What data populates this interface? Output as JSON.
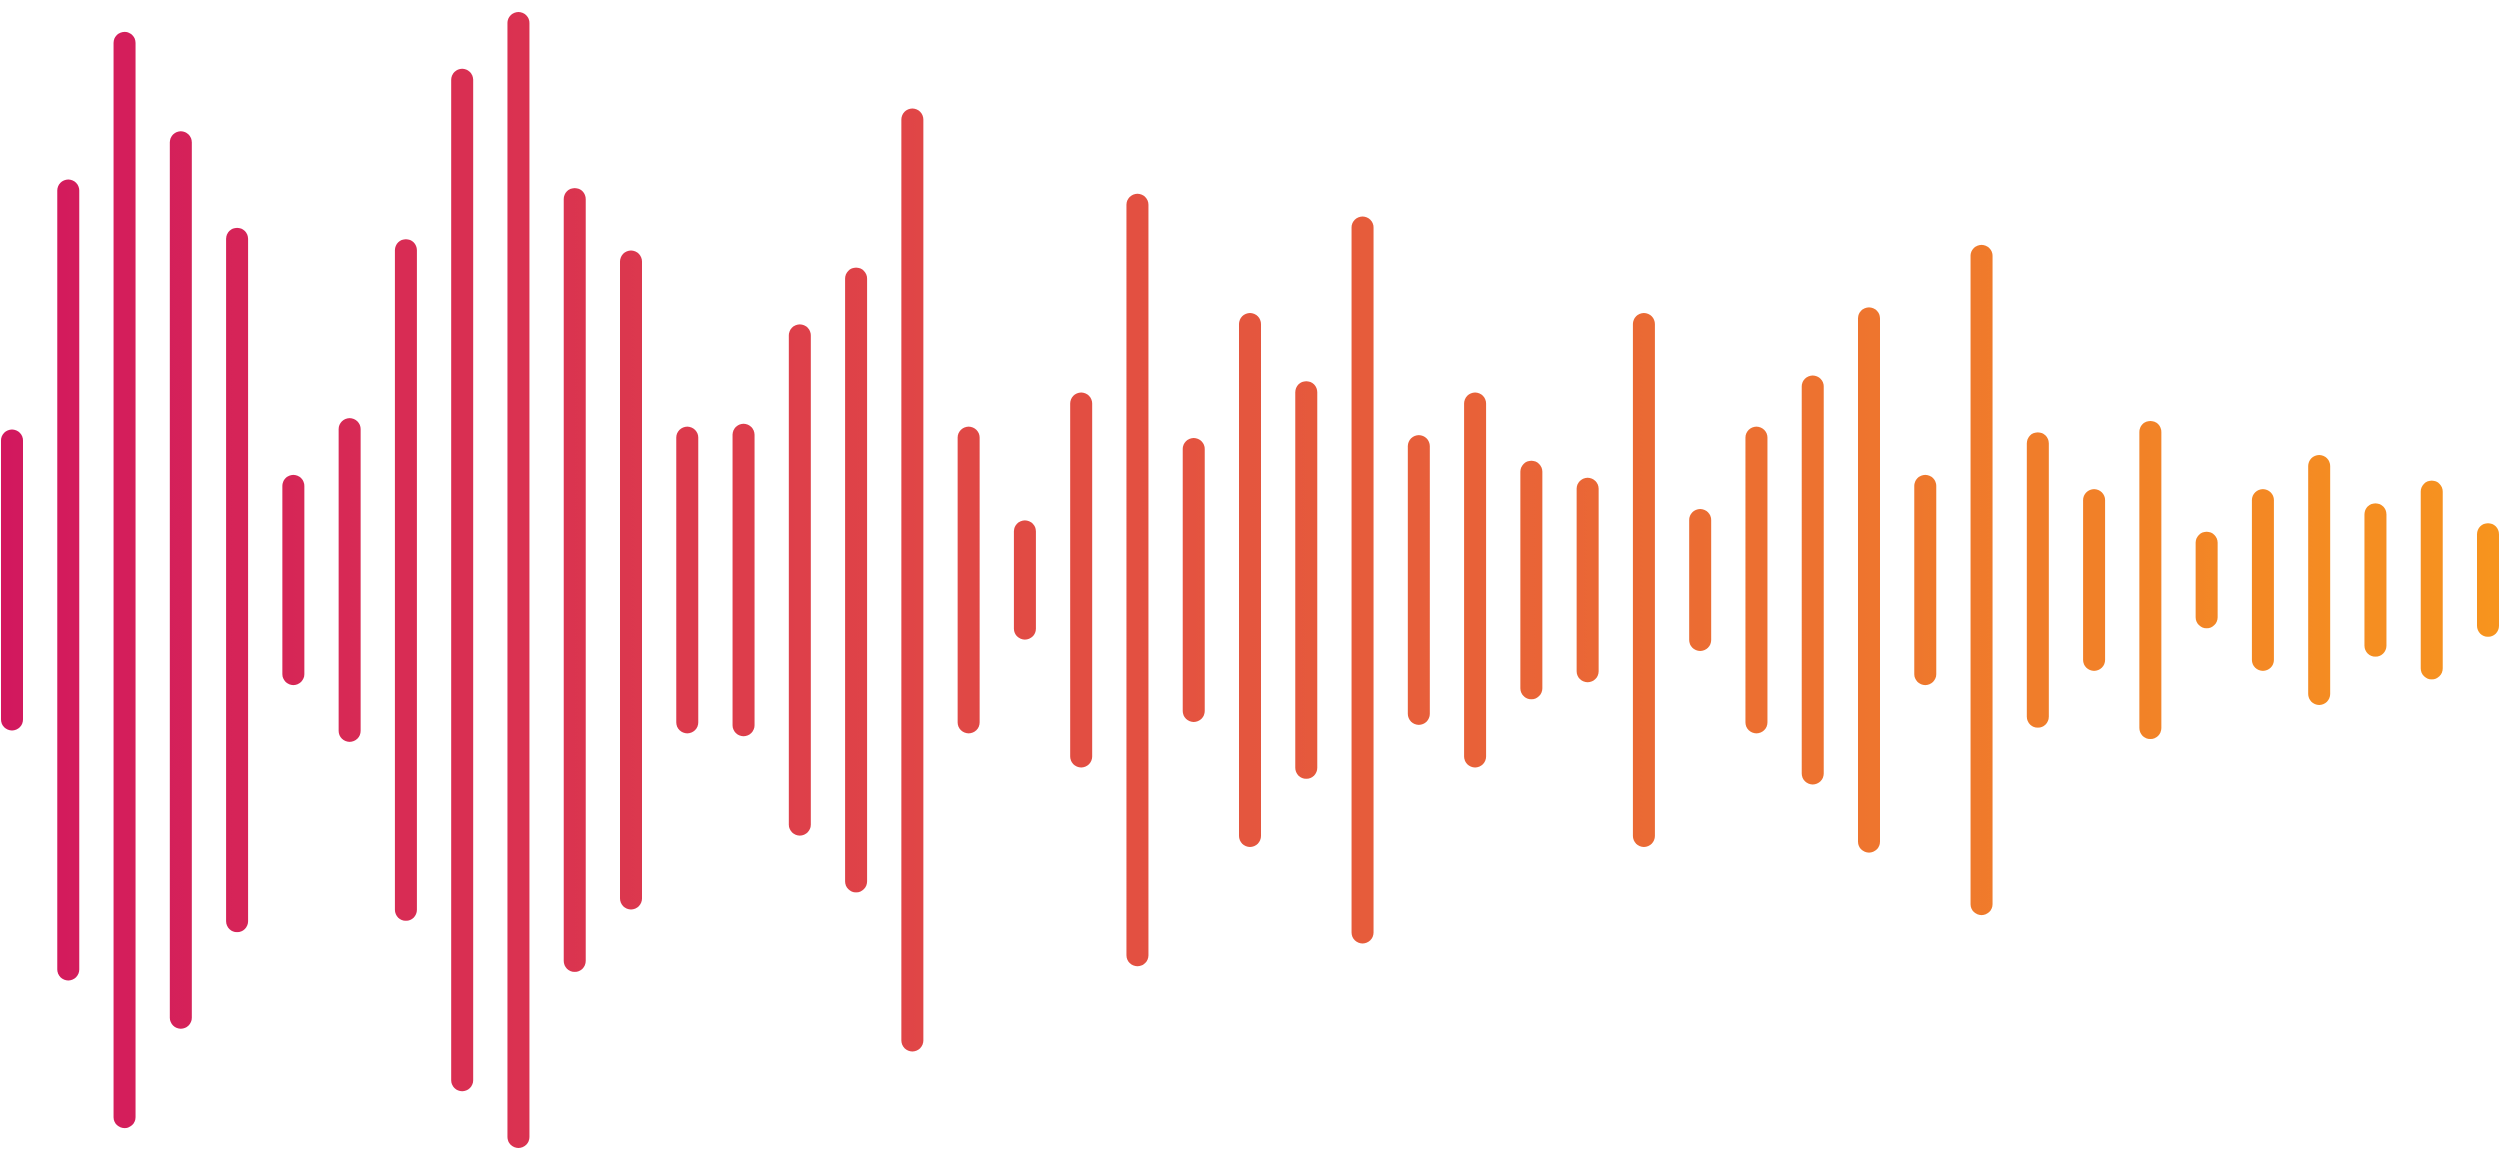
{
  "waveform": {
    "gradient": {
      "start_color": "#D2185E",
      "end_color": "#F7941E"
    },
    "bar_count": 45,
    "bar_levels": [
      0.265,
      0.705,
      0.965,
      0.79,
      0.62,
      0.185,
      0.285,
      0.6,
      0.9,
      1.0,
      0.69,
      0.58,
      0.27,
      0.275,
      0.45,
      0.55,
      0.83,
      0.27,
      0.105,
      0.33,
      0.68,
      0.25,
      0.47,
      0.35,
      0.64,
      0.255,
      0.33,
      0.21,
      0.18,
      0.47,
      0.125,
      0.27,
      0.36,
      0.48,
      0.185,
      0.59,
      0.26,
      0.16,
      0.28,
      0.085,
      0.16,
      0.22,
      0.135,
      0.175,
      0.1
    ]
  }
}
